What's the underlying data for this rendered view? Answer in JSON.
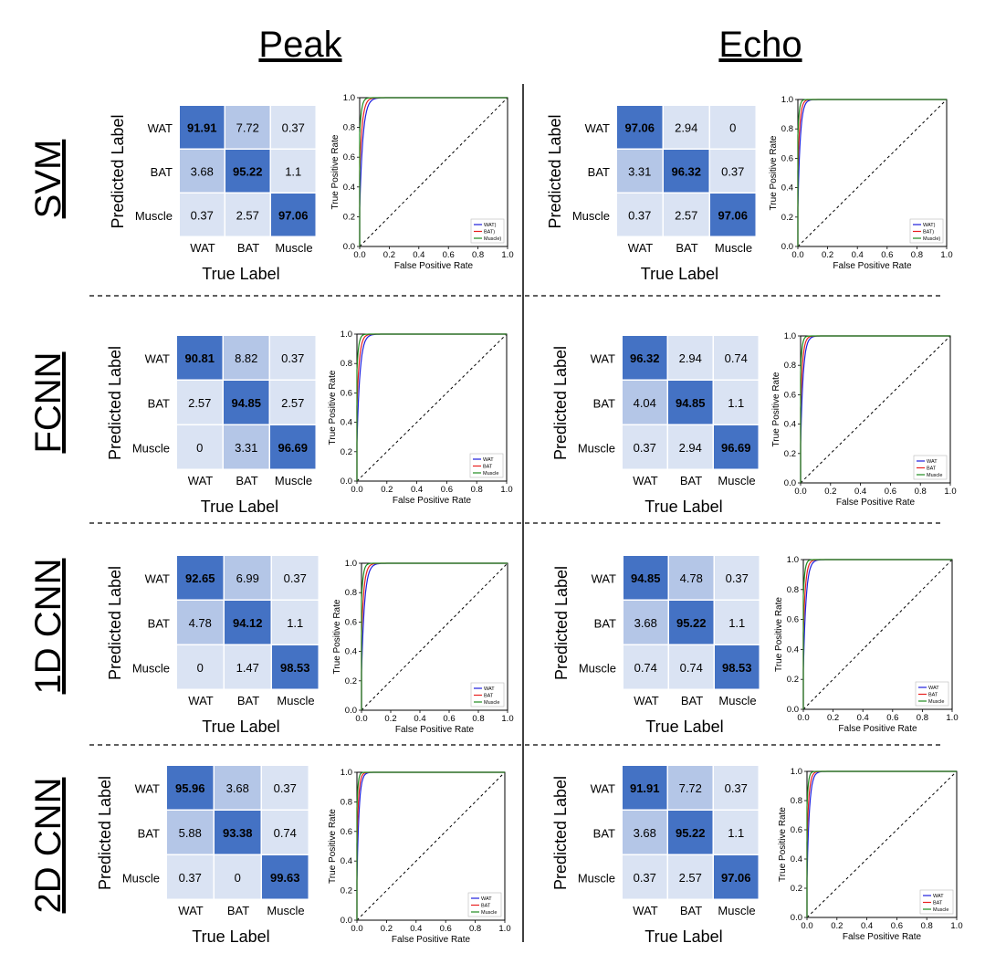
{
  "columns": [
    "Peak",
    "Echo"
  ],
  "rows": [
    "SVM",
    "FCNN",
    "1D CNN",
    "2D CNN"
  ],
  "chart_data": {
    "type": "heatmap",
    "description_free": true,
    "matrix_labels": {
      "x_categories": [
        "WAT",
        "BAT",
        "Muscle"
      ],
      "y_categories": [
        "WAT",
        "BAT",
        "Muscle"
      ],
      "xlabel": "True Label",
      "ylabel": "Predicted Label"
    },
    "roc_labels": {
      "xlabel": "False Positive Rate",
      "ylabel": "True Positive Rate",
      "ticks": [
        "0.0",
        "0.2",
        "0.4",
        "0.6",
        "0.8",
        "1.0"
      ],
      "xlim": [
        0,
        1
      ],
      "ylim": [
        0,
        1
      ]
    },
    "colors": {
      "WAT": "#1f1fdd",
      "BAT": "#e8201f",
      "Muscle": "#1f8c1f",
      "matrix_high": "#4472c4",
      "matrix_mid": "#b4c6e7",
      "matrix_low": "#dae3f3"
    },
    "panels": [
      {
        "row": "SVM",
        "column": "Peak",
        "matrix": [
          [
            91.91,
            7.72,
            0.37
          ],
          [
            3.68,
            95.22,
            1.1
          ],
          [
            0.37,
            2.57,
            97.06
          ]
        ],
        "legend": [
          "WAT)",
          "BAT)",
          "Muscle)"
        ]
      },
      {
        "row": "SVM",
        "column": "Echo",
        "matrix": [
          [
            97.06,
            2.94,
            0.0
          ],
          [
            3.31,
            96.32,
            0.37
          ],
          [
            0.37,
            2.57,
            97.06
          ]
        ],
        "legend": [
          "WAT)",
          "BAT)",
          "Muscle)"
        ]
      },
      {
        "row": "FCNN",
        "column": "Peak",
        "matrix": [
          [
            90.81,
            8.82,
            0.37
          ],
          [
            2.57,
            94.85,
            2.57
          ],
          [
            0.0,
            3.31,
            96.69
          ]
        ],
        "legend": [
          "WAT",
          "BAT",
          "Muscle"
        ]
      },
      {
        "row": "FCNN",
        "column": "Echo",
        "matrix": [
          [
            96.32,
            2.94,
            0.74
          ],
          [
            4.04,
            94.85,
            1.1
          ],
          [
            0.37,
            2.94,
            96.69
          ]
        ],
        "legend": [
          "WAT",
          "BAT",
          "Muscle"
        ]
      },
      {
        "row": "1D CNN",
        "column": "Peak",
        "matrix": [
          [
            92.65,
            6.99,
            0.37
          ],
          [
            4.78,
            94.12,
            1.1
          ],
          [
            0.0,
            1.47,
            98.53
          ]
        ],
        "legend": [
          "WAT",
          "BAT",
          "Muscle"
        ]
      },
      {
        "row": "1D CNN",
        "column": "Echo",
        "matrix": [
          [
            94.85,
            4.78,
            0.37
          ],
          [
            3.68,
            95.22,
            1.1
          ],
          [
            0.74,
            0.74,
            98.53
          ]
        ],
        "legend": [
          "WAT",
          "BAT",
          "Muscle"
        ]
      },
      {
        "row": "2D CNN",
        "column": "Peak",
        "matrix": [
          [
            95.96,
            3.68,
            0.37
          ],
          [
            5.88,
            93.38,
            0.74
          ],
          [
            0.37,
            0.0,
            99.63
          ]
        ],
        "legend": [
          "WAT",
          "BAT",
          "Muscle"
        ]
      },
      {
        "row": "2D CNN",
        "column": "Echo",
        "matrix": [
          [
            91.91,
            7.72,
            0.37
          ],
          [
            3.68,
            95.22,
            1.1
          ],
          [
            0.37,
            2.57,
            97.06
          ]
        ],
        "legend": [
          "WAT",
          "BAT",
          "Muscle"
        ]
      }
    ]
  }
}
